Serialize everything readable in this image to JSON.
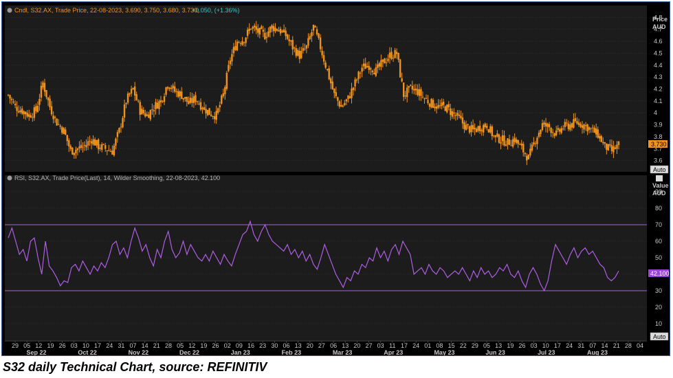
{
  "caption": "S32 daily Technical Chart, source: REFINITIV",
  "colors": {
    "background": "#000000",
    "panel": "#1c1c1c",
    "grid": "#3a3a3a",
    "candle": "#f0931e",
    "rsi": "#b05ee6",
    "axis_text": "#c8c8c8",
    "legend_orange": "#f0931e",
    "legend_teal": "#3fc6c6",
    "rsi_legend": "#b5b5b5"
  },
  "price_panel": {
    "legend": {
      "series": "Cndl, S32.AX, Trade Price, 22-08-2023, 3.690, 3.750, 3.680, 3.730,",
      "change": "+0.050, (+1.36%)"
    },
    "axis_title": "Price",
    "axis_unit": "AUD",
    "last_value_label": "3.730",
    "auto_label": "Auto"
  },
  "rsi_panel": {
    "legend": "RSI, S32.AX, Trade Price(Last), 14, Wilder Smoothing, 22-08-2023, 42.100",
    "axis_title": "Value",
    "axis_unit": "AUD",
    "last_value_label": "42.100",
    "auto_label": "Auto"
  },
  "chart_data": [
    {
      "type": "candlestick",
      "ylim": [
        3.5,
        4.9
      ],
      "yticks": [
        "3.6",
        "3.7",
        "3.8",
        "3.9",
        "4",
        "4.1",
        "4.2",
        "4.3",
        "4.4",
        "4.5",
        "4.6",
        "4.7",
        "4.8"
      ],
      "close_path": [
        [
          0,
          4.15
        ],
        [
          4,
          4.05
        ],
        [
          8,
          4.02
        ],
        [
          12,
          3.98
        ],
        [
          16,
          4.02
        ],
        [
          20,
          4.25
        ],
        [
          24,
          4.05
        ],
        [
          28,
          3.92
        ],
        [
          32,
          3.85
        ],
        [
          36,
          3.68
        ],
        [
          40,
          3.7
        ],
        [
          44,
          3.72
        ],
        [
          48,
          3.78
        ],
        [
          52,
          3.72
        ],
        [
          56,
          3.7
        ],
        [
          60,
          3.68
        ],
        [
          64,
          3.85
        ],
        [
          68,
          4.1
        ],
        [
          72,
          4.2
        ],
        [
          76,
          4.02
        ],
        [
          80,
          3.98
        ],
        [
          84,
          4.05
        ],
        [
          88,
          4.1
        ],
        [
          92,
          4.25
        ],
        [
          96,
          4.18
        ],
        [
          100,
          4.15
        ],
        [
          104,
          4.08
        ],
        [
          108,
          4.12
        ],
        [
          112,
          4.05
        ],
        [
          116,
          4.0
        ],
        [
          120,
          3.98
        ],
        [
          124,
          4.15
        ],
        [
          128,
          4.45
        ],
        [
          132,
          4.6
        ],
        [
          136,
          4.62
        ],
        [
          140,
          4.72
        ],
        [
          144,
          4.68
        ],
        [
          148,
          4.65
        ],
        [
          152,
          4.72
        ],
        [
          156,
          4.7
        ],
        [
          160,
          4.65
        ],
        [
          164,
          4.55
        ],
        [
          168,
          4.48
        ],
        [
          172,
          4.55
        ],
        [
          176,
          4.72
        ],
        [
          180,
          4.55
        ],
        [
          184,
          4.35
        ],
        [
          188,
          4.15
        ],
        [
          192,
          4.05
        ],
        [
          196,
          4.12
        ],
        [
          200,
          4.25
        ],
        [
          204,
          4.38
        ],
        [
          208,
          4.4
        ],
        [
          212,
          4.35
        ],
        [
          216,
          4.42
        ],
        [
          220,
          4.48
        ],
        [
          224,
          4.5
        ],
        [
          228,
          4.15
        ],
        [
          232,
          4.2
        ],
        [
          236,
          4.18
        ],
        [
          240,
          4.12
        ],
        [
          244,
          4.08
        ],
        [
          248,
          4.05
        ],
        [
          252,
          4.05
        ],
        [
          256,
          4.0
        ],
        [
          260,
          3.95
        ],
        [
          264,
          3.88
        ],
        [
          268,
          3.85
        ],
        [
          272,
          3.88
        ],
        [
          276,
          3.9
        ],
        [
          280,
          3.8
        ],
        [
          284,
          3.78
        ],
        [
          288,
          3.75
        ],
        [
          292,
          3.78
        ],
        [
          296,
          3.7
        ],
        [
          300,
          3.62
        ],
        [
          304,
          3.78
        ],
        [
          308,
          3.9
        ],
        [
          312,
          3.88
        ],
        [
          316,
          3.82
        ],
        [
          320,
          3.88
        ],
        [
          324,
          3.9
        ],
        [
          328,
          3.92
        ],
        [
          332,
          3.9
        ],
        [
          336,
          3.86
        ],
        [
          340,
          3.82
        ],
        [
          344,
          3.72
        ],
        [
          348,
          3.68
        ],
        [
          352,
          3.73
        ]
      ]
    },
    {
      "type": "line",
      "series": [
        {
          "name": "RSI"
        }
      ],
      "ylim": [
        0,
        100
      ],
      "yticks": [
        "10",
        "20",
        "30",
        "40",
        "50",
        "60",
        "70",
        "80",
        "90"
      ],
      "reference_lines": [
        70,
        30
      ],
      "values": [
        [
          0,
          62
        ],
        [
          2,
          68
        ],
        [
          4,
          60
        ],
        [
          6,
          52
        ],
        [
          8,
          55
        ],
        [
          10,
          48
        ],
        [
          12,
          60
        ],
        [
          14,
          62
        ],
        [
          16,
          50
        ],
        [
          18,
          40
        ],
        [
          20,
          60
        ],
        [
          22,
          45
        ],
        [
          24,
          42
        ],
        [
          26,
          38
        ],
        [
          28,
          33
        ],
        [
          30,
          36
        ],
        [
          32,
          35
        ],
        [
          34,
          44
        ],
        [
          36,
          46
        ],
        [
          38,
          42
        ],
        [
          40,
          48
        ],
        [
          42,
          44
        ],
        [
          44,
          40
        ],
        [
          46,
          45
        ],
        [
          48,
          42
        ],
        [
          50,
          47
        ],
        [
          52,
          44
        ],
        [
          54,
          50
        ],
        [
          56,
          58
        ],
        [
          58,
          60
        ],
        [
          60,
          52
        ],
        [
          62,
          56
        ],
        [
          64,
          50
        ],
        [
          66,
          60
        ],
        [
          68,
          68
        ],
        [
          70,
          62
        ],
        [
          72,
          54
        ],
        [
          74,
          58
        ],
        [
          76,
          50
        ],
        [
          78,
          45
        ],
        [
          80,
          55
        ],
        [
          82,
          50
        ],
        [
          84,
          60
        ],
        [
          86,
          66
        ],
        [
          88,
          55
        ],
        [
          90,
          50
        ],
        [
          92,
          53
        ],
        [
          94,
          60
        ],
        [
          96,
          52
        ],
        [
          98,
          58
        ],
        [
          100,
          54
        ],
        [
          102,
          50
        ],
        [
          104,
          48
        ],
        [
          106,
          52
        ],
        [
          108,
          48
        ],
        [
          110,
          54
        ],
        [
          112,
          50
        ],
        [
          114,
          46
        ],
        [
          116,
          52
        ],
        [
          118,
          48
        ],
        [
          120,
          45
        ],
        [
          122,
          52
        ],
        [
          124,
          58
        ],
        [
          126,
          64
        ],
        [
          128,
          66
        ],
        [
          130,
          72
        ],
        [
          132,
          64
        ],
        [
          134,
          60
        ],
        [
          136,
          66
        ],
        [
          138,
          70
        ],
        [
          140,
          64
        ],
        [
          142,
          60
        ],
        [
          144,
          58
        ],
        [
          146,
          56
        ],
        [
          148,
          54
        ],
        [
          150,
          58
        ],
        [
          152,
          52
        ],
        [
          154,
          55
        ],
        [
          156,
          50
        ],
        [
          158,
          54
        ],
        [
          160,
          48
        ],
        [
          162,
          52
        ],
        [
          164,
          46
        ],
        [
          166,
          43
        ],
        [
          168,
          50
        ],
        [
          170,
          58
        ],
        [
          172,
          52
        ],
        [
          174,
          46
        ],
        [
          176,
          40
        ],
        [
          178,
          36
        ],
        [
          180,
          32
        ],
        [
          182,
          38
        ],
        [
          184,
          36
        ],
        [
          186,
          42
        ],
        [
          188,
          40
        ],
        [
          190,
          46
        ],
        [
          192,
          44
        ],
        [
          194,
          50
        ],
        [
          196,
          48
        ],
        [
          198,
          56
        ],
        [
          200,
          50
        ],
        [
          202,
          54
        ],
        [
          204,
          48
        ],
        [
          206,
          55
        ],
        [
          208,
          58
        ],
        [
          210,
          52
        ],
        [
          212,
          60
        ],
        [
          214,
          56
        ],
        [
          216,
          52
        ],
        [
          218,
          40
        ],
        [
          220,
          42
        ],
        [
          222,
          44
        ],
        [
          224,
          40
        ],
        [
          226,
          46
        ],
        [
          228,
          42
        ],
        [
          230,
          40
        ],
        [
          232,
          44
        ],
        [
          234,
          42
        ],
        [
          236,
          38
        ],
        [
          238,
          40
        ],
        [
          240,
          42
        ],
        [
          242,
          40
        ],
        [
          244,
          44
        ],
        [
          246,
          40
        ],
        [
          248,
          36
        ],
        [
          250,
          42
        ],
        [
          252,
          38
        ],
        [
          254,
          44
        ],
        [
          256,
          40
        ],
        [
          258,
          42
        ],
        [
          260,
          38
        ],
        [
          262,
          40
        ],
        [
          264,
          44
        ],
        [
          266,
          42
        ],
        [
          268,
          46
        ],
        [
          270,
          40
        ],
        [
          272,
          38
        ],
        [
          274,
          42
        ],
        [
          276,
          36
        ],
        [
          278,
          32
        ],
        [
          280,
          40
        ],
        [
          282,
          44
        ],
        [
          284,
          40
        ],
        [
          286,
          34
        ],
        [
          288,
          30
        ],
        [
          290,
          36
        ],
        [
          292,
          48
        ],
        [
          294,
          58
        ],
        [
          296,
          54
        ],
        [
          298,
          50
        ],
        [
          300,
          46
        ],
        [
          302,
          52
        ],
        [
          304,
          56
        ],
        [
          306,
          50
        ],
        [
          308,
          54
        ],
        [
          310,
          56
        ],
        [
          312,
          52
        ],
        [
          314,
          54
        ],
        [
          316,
          50
        ],
        [
          318,
          46
        ],
        [
          320,
          44
        ],
        [
          322,
          38
        ],
        [
          324,
          36
        ],
        [
          326,
          38
        ],
        [
          328,
          42
        ]
      ]
    }
  ],
  "x_axis": {
    "day_labels": [
      "29",
      "05",
      "12",
      "19",
      "26",
      "03",
      "10",
      "17",
      "24",
      "31",
      "07",
      "14",
      "21",
      "28",
      "05",
      "12",
      "19",
      "26",
      "02",
      "09",
      "16",
      "23",
      "30",
      "06",
      "13",
      "20",
      "27",
      "06",
      "13",
      "20",
      "27",
      "03",
      "11",
      "17",
      "24",
      "01",
      "08",
      "15",
      "22",
      "29",
      "05",
      "13",
      "19",
      "26",
      "03",
      "10",
      "17",
      "24",
      "31",
      "07",
      "14",
      "21",
      "28",
      "04"
    ],
    "month_labels": [
      "Sep 22",
      "Oct 22",
      "Nov 22",
      "Dec 22",
      "Jan 23",
      "Feb 23",
      "Mar 23",
      "Apr 23",
      "May 23",
      "Jun 23",
      "Jul 23",
      "Aug 23"
    ]
  }
}
